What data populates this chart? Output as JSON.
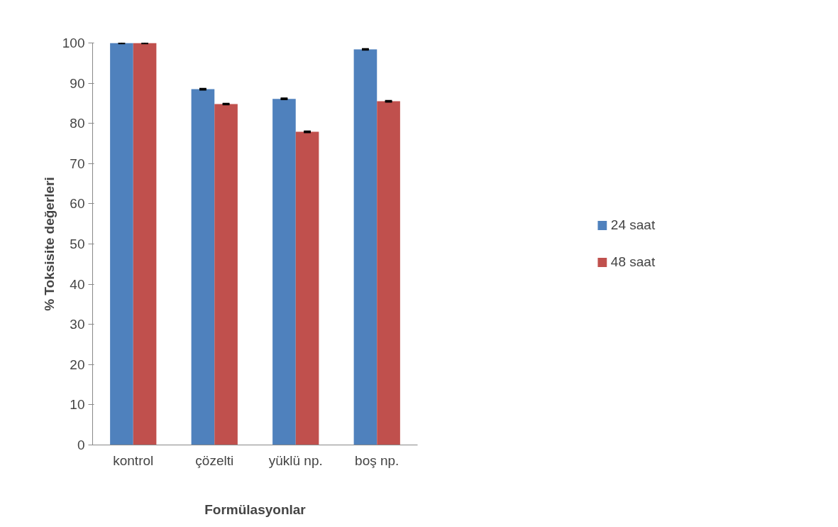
{
  "chart_data": {
    "type": "bar",
    "xlabel": "Formülasyonlar",
    "ylabel": "% Toksisite değerleri",
    "categories": [
      "kontrol",
      "çözelti",
      "yüklü np.",
      "boş np."
    ],
    "series": [
      {
        "name": "24 saat",
        "color": "#4f81bd",
        "values": [
          100,
          88.5,
          86.1,
          98.4
        ],
        "errors": [
          0.1,
          0.1,
          0.1,
          0.1
        ]
      },
      {
        "name": "48 saat",
        "color": "#c0504d",
        "values": [
          100,
          84.8,
          77.9,
          85.5
        ],
        "errors": [
          0.1,
          0.1,
          0.1,
          0.1
        ]
      }
    ],
    "ylim": [
      0,
      100
    ],
    "yticks": [
      0,
      10,
      20,
      30,
      40,
      50,
      60,
      70,
      80,
      90,
      100
    ],
    "grid": false,
    "legend": "right"
  }
}
